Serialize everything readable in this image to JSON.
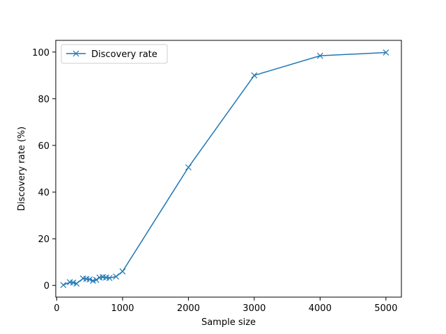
{
  "chart_data": {
    "type": "line",
    "title": "",
    "xlabel": "Sample size",
    "ylabel": "Discovery rate (%)",
    "xlim": [
      -15,
      5235
    ],
    "ylim": [
      -5,
      105
    ],
    "xticks": [
      0,
      1000,
      2000,
      3000,
      4000,
      5000
    ],
    "yticks": [
      0,
      20,
      40,
      60,
      80,
      100
    ],
    "grid": false,
    "legend_position": "top-left",
    "series": [
      {
        "name": "Discovery rate",
        "color": "#1f77b4",
        "marker": "x",
        "x": [
          100,
          200,
          250,
          300,
          400,
          450,
          500,
          550,
          600,
          650,
          700,
          750,
          800,
          900,
          1000,
          2000,
          3000,
          4000,
          5000
        ],
        "y": [
          0.2,
          1.4,
          1.2,
          0.8,
          3.0,
          2.8,
          2.6,
          2.0,
          2.4,
          3.4,
          3.6,
          3.4,
          3.2,
          3.8,
          6.0,
          50.6,
          90.0,
          98.4,
          99.8
        ]
      }
    ]
  }
}
